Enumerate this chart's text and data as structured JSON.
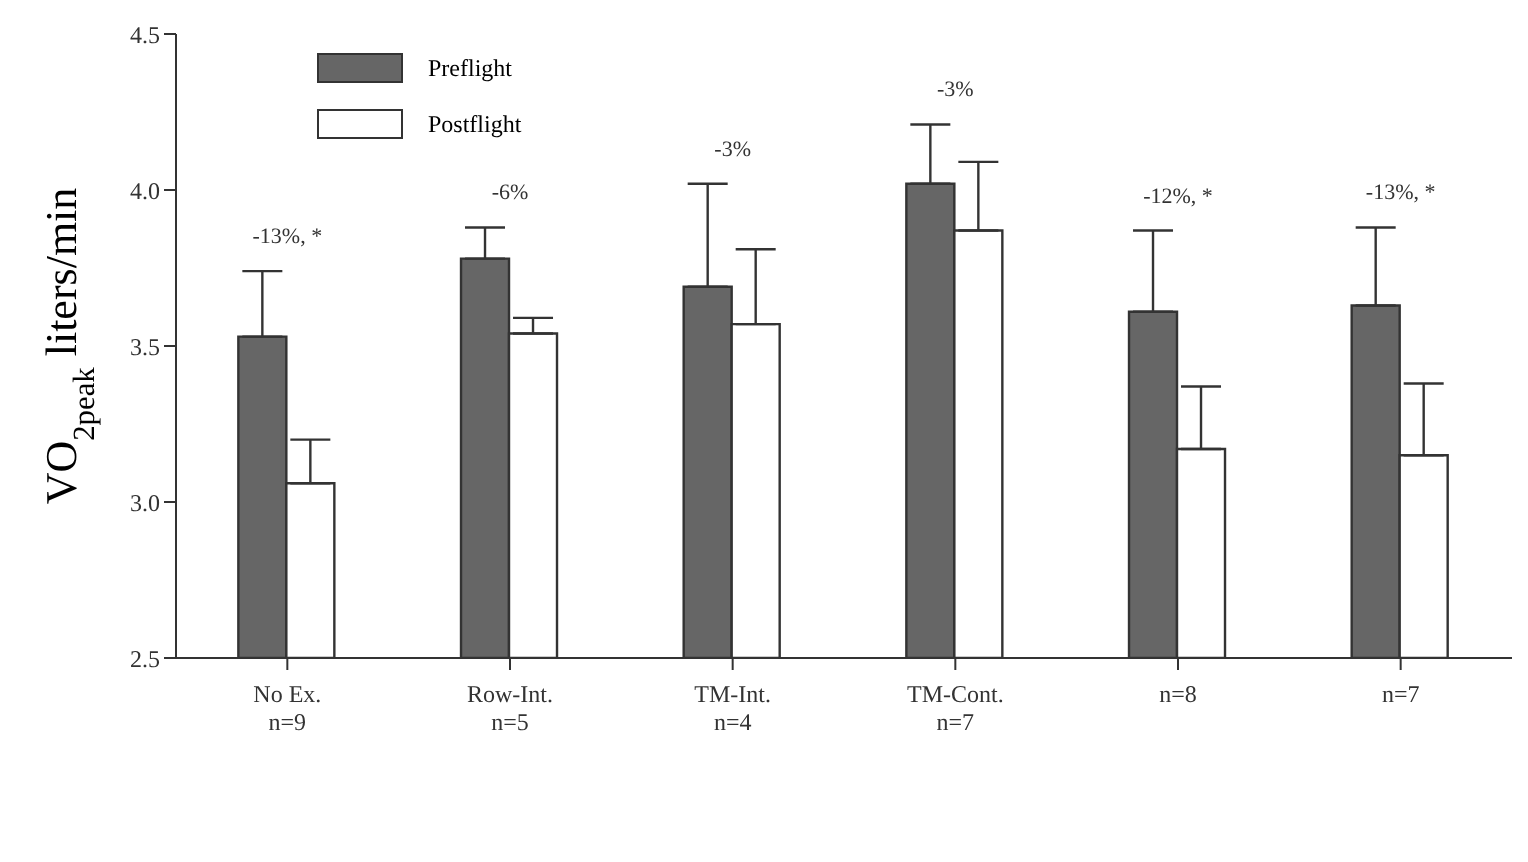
{
  "chart_data": {
    "type": "bar",
    "ylabel": "VO$_{2peak}$ liters/min",
    "categories": [
      "No Ex.\nn=9",
      "Row-Int.\nn=5",
      "TM-Int.\nn=4",
      "TM-Cont.\nn=7",
      "n=8",
      "n=7"
    ],
    "series": [
      {
        "name": "Preflight",
        "color": "#666666",
        "values": [
          3.53,
          3.78,
          3.69,
          4.02,
          3.61,
          3.63
        ],
        "errors": [
          [
            3.53,
            3.74
          ],
          [
            3.78,
            3.88
          ],
          [
            3.69,
            4.02
          ],
          [
            4.02,
            4.21
          ],
          [
            3.61,
            3.87
          ],
          [
            3.63,
            3.88
          ]
        ]
      },
      {
        "name": "Postflight",
        "color": "#ffffff",
        "values": [
          3.06,
          3.54,
          3.57,
          3.87,
          3.17,
          3.15
        ],
        "errors": [
          [
            3.06,
            3.2
          ],
          [
            3.54,
            3.59
          ],
          [
            3.57,
            3.81
          ],
          [
            3.87,
            4.09
          ],
          [
            3.17,
            3.37
          ],
          [
            3.15,
            3.38
          ]
        ]
      }
    ],
    "ylim": [
      2.5,
      4.5
    ],
    "yticks": [
      {
        "value": 2.5,
        "label": "2.5"
      },
      {
        "value": 3,
        "label": "3.0"
      },
      {
        "value": 3.5,
        "label": "3.5"
      },
      {
        "value": 4,
        "label": "4.0"
      },
      {
        "value": 4.5,
        "label": "4.5"
      }
    ],
    "annotations": [
      "-13%, *",
      "-6%",
      "-3%",
      "-3%",
      "-12%, *",
      "-13%, *"
    ],
    "legend": "top left",
    "grid": false
  }
}
